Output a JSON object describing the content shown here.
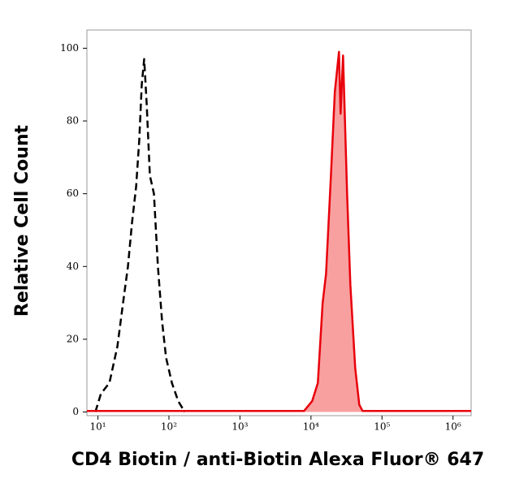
{
  "chart_data": {
    "type": "histogram-overlay",
    "xlabel": "CD4 Biotin / anti-Biotin Alexa Fluor® 647",
    "ylabel": "Relative Cell Count",
    "xscale": "log",
    "xlim": [
      7,
      1800000
    ],
    "ylim": [
      -1,
      105
    ],
    "xticks": [
      {
        "value": 10,
        "label": "10¹"
      },
      {
        "value": 100,
        "label": "10²"
      },
      {
        "value": 1000,
        "label": "10³"
      },
      {
        "value": 10000,
        "label": "10⁴"
      },
      {
        "value": 100000,
        "label": "10⁵"
      },
      {
        "value": 1000000,
        "label": "10⁶"
      }
    ],
    "yticks": [
      0,
      20,
      40,
      60,
      80,
      100
    ],
    "series": [
      {
        "color": "#000000",
        "dashed": true,
        "filled": false,
        "x": [
          9.2,
          11,
          14.5,
          18.8,
          22.6,
          26.5,
          30.2,
          34.5,
          38.3,
          41.4,
          44.8,
          48.5,
          53.9,
          61.5,
          70,
          80,
          91,
          110,
          135,
          167
        ],
        "values": [
          0,
          5,
          8,
          18,
          30,
          40,
          52,
          62,
          75,
          90,
          97,
          85,
          65,
          60,
          40,
          25,
          15,
          8,
          3,
          0
        ]
      },
      {
        "color": "#e8000b",
        "fill_color": "#f8a0a0",
        "dashed": false,
        "filled": true,
        "x": [
          7,
          1000,
          8000,
          10400,
          12500,
          14600,
          16300,
          19100,
          21700,
          24800,
          26100,
          28300,
          32300,
          35800,
          42000,
          47900,
          53200,
          1000000,
          1800000
        ],
        "values": [
          0.3,
          0.3,
          0.3,
          3,
          8,
          30,
          38,
          65,
          88,
          99,
          82,
          98,
          60,
          35,
          12,
          2,
          0.3,
          0.3,
          0.3
        ]
      }
    ]
  }
}
